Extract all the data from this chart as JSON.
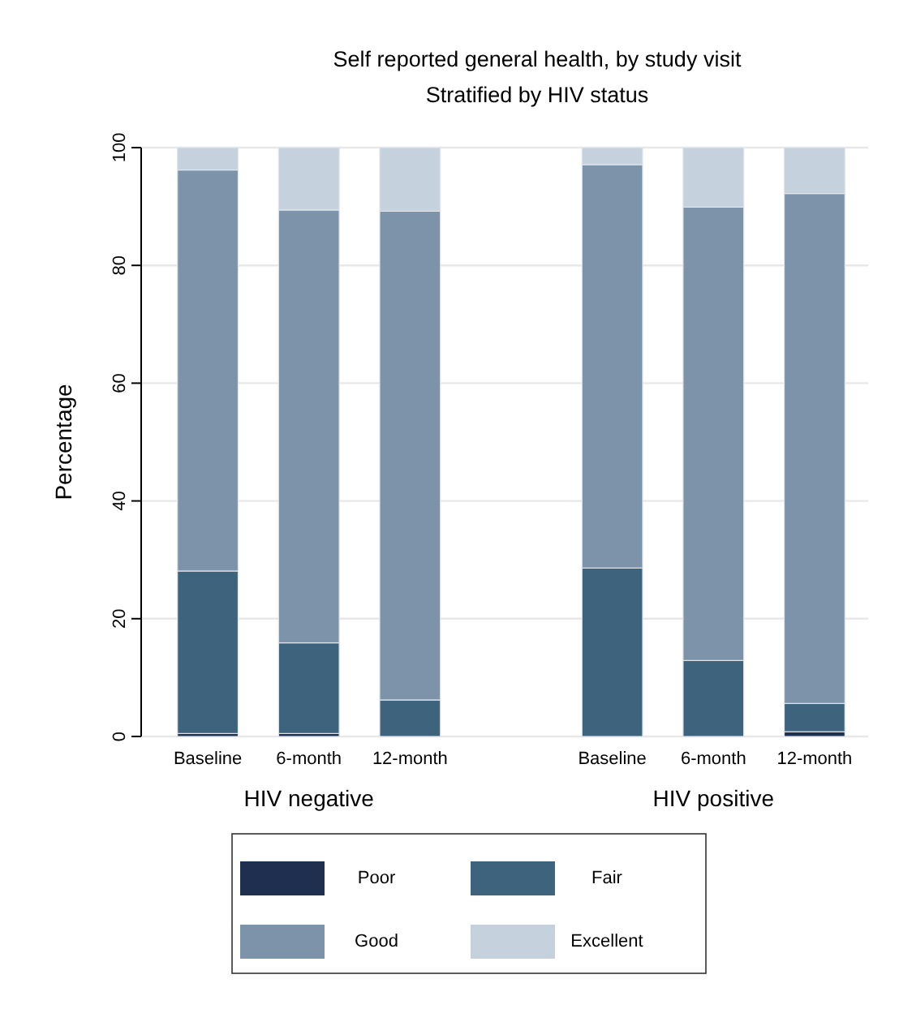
{
  "chart_data": {
    "type": "bar",
    "title": "Self reported general health, by study visit",
    "subtitle": "Stratified by HIV status",
    "ylabel": "Percentage",
    "categories": [
      "Baseline",
      "6-month",
      "12-month",
      null,
      "Baseline",
      "6-month",
      "12-month"
    ],
    "annotations": [
      "HIV negative",
      "HIV positive"
    ],
    "stacked": true,
    "series": [
      {
        "name": "Poor",
        "color": "#1f2f4f",
        "values": [
          0.5,
          0.5,
          0,
          null,
          0,
          0,
          0.8
        ]
      },
      {
        "name": "Fair",
        "color": "#3e637d",
        "values": [
          27.6,
          15.4,
          6.2,
          null,
          28.6,
          12.9,
          4.8
        ]
      },
      {
        "name": "Good",
        "color": "#7d93aa",
        "values": [
          68.1,
          73.5,
          83.0,
          null,
          68.5,
          77.0,
          86.6
        ]
      },
      {
        "name": "Excellent",
        "color": "#c5d1dc",
        "values": [
          3.8,
          10.6,
          10.8,
          null,
          2.9,
          10.1,
          7.8
        ]
      }
    ],
    "ylim": [
      0,
      100
    ],
    "yticks": [
      0,
      20,
      40,
      60,
      80,
      100
    ],
    "grid": "y",
    "legend": "bottom"
  }
}
